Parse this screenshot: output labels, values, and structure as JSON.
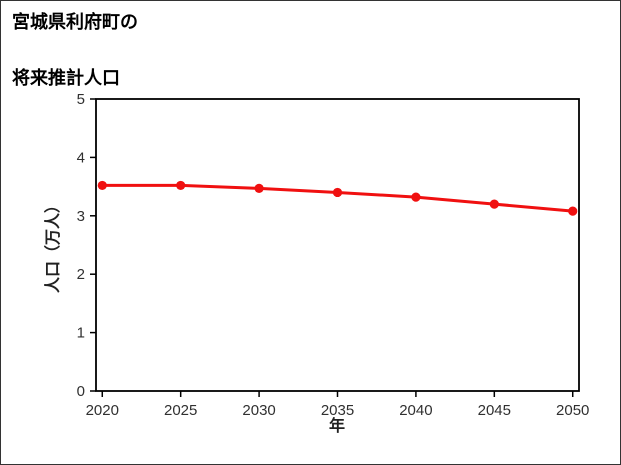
{
  "chart_data": {
    "type": "line",
    "title": "宮城県利府町の将来推計人口",
    "title_lines": [
      "宮城県利府町の",
      "将来推計人口"
    ],
    "xlabel": "年",
    "ylabel": "人口（万人）",
    "x": [
      2020,
      2025,
      2030,
      2035,
      2040,
      2045,
      2050
    ],
    "series": [
      {
        "name": "将来推計人口",
        "values": [
          3.52,
          3.52,
          3.47,
          3.4,
          3.32,
          3.2,
          3.08
        ]
      }
    ],
    "xticks": [
      2020,
      2025,
      2030,
      2035,
      2040,
      2045,
      2050
    ],
    "yticks": [
      0,
      1,
      2,
      3,
      4,
      5
    ],
    "xlim": [
      2019.6,
      2050.4
    ],
    "ylim": [
      0,
      5
    ],
    "grid": false,
    "legend": false,
    "line_color": "#f01010",
    "marker": "circle",
    "frame_color": "#000000"
  }
}
